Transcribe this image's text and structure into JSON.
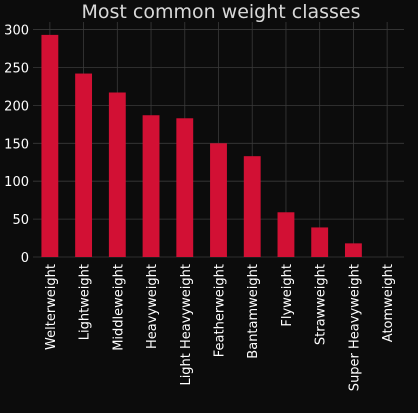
{
  "chart_data": {
    "type": "bar",
    "title": "Most common weight classes",
    "xlabel": "",
    "ylabel": "",
    "categories": [
      "Welterweight",
      "Lightweight",
      "Middleweight",
      "Heavyweight",
      "Light Heavyweight",
      "Featherweight",
      "Bantamweight",
      "Flyweight",
      "Strawweight",
      "Super Heavyweight",
      "Atomweight"
    ],
    "values": [
      293,
      242,
      217,
      187,
      183,
      150,
      133,
      59,
      39,
      18,
      0
    ],
    "ylim": [
      0,
      310
    ],
    "yticks": [
      0,
      50,
      100,
      150,
      200,
      250,
      300
    ],
    "grid": true,
    "legend": "none",
    "colors": {
      "bar": "#d21034",
      "background": "#0c0c0c",
      "plot_background": "#0c0c0c",
      "grid": "#3a3a3a",
      "text": "#ffffff",
      "title": "#d9d9d9"
    }
  }
}
